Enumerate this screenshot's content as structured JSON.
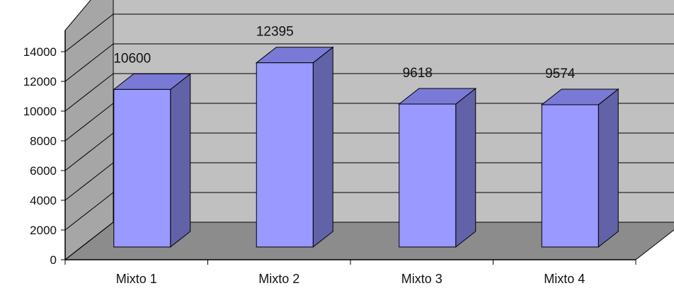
{
  "chart_data": {
    "type": "bar",
    "style": "3d-column",
    "categories": [
      "Mixto 1",
      "Mixto 2",
      "Mixto 3",
      "Mixto 4"
    ],
    "values": [
      10600,
      12395,
      9618,
      9574
    ],
    "data_labels": [
      "10600",
      "12395",
      "9618",
      "9574"
    ],
    "y_ticks": [
      "0",
      "2000",
      "4000",
      "6000",
      "8000",
      "10000",
      "12000",
      "14000"
    ],
    "ylim": [
      0,
      14000
    ],
    "grid": true,
    "legend": "none",
    "colors": {
      "bar_front": "#9999ff",
      "bar_top": "#7a7ad6",
      "bar_side": "#6262a8",
      "back_wall": "#c0c0c0",
      "side_wall": "#a6a6a6",
      "floor": "#8c8c8c",
      "gridline": "#000000"
    }
  }
}
